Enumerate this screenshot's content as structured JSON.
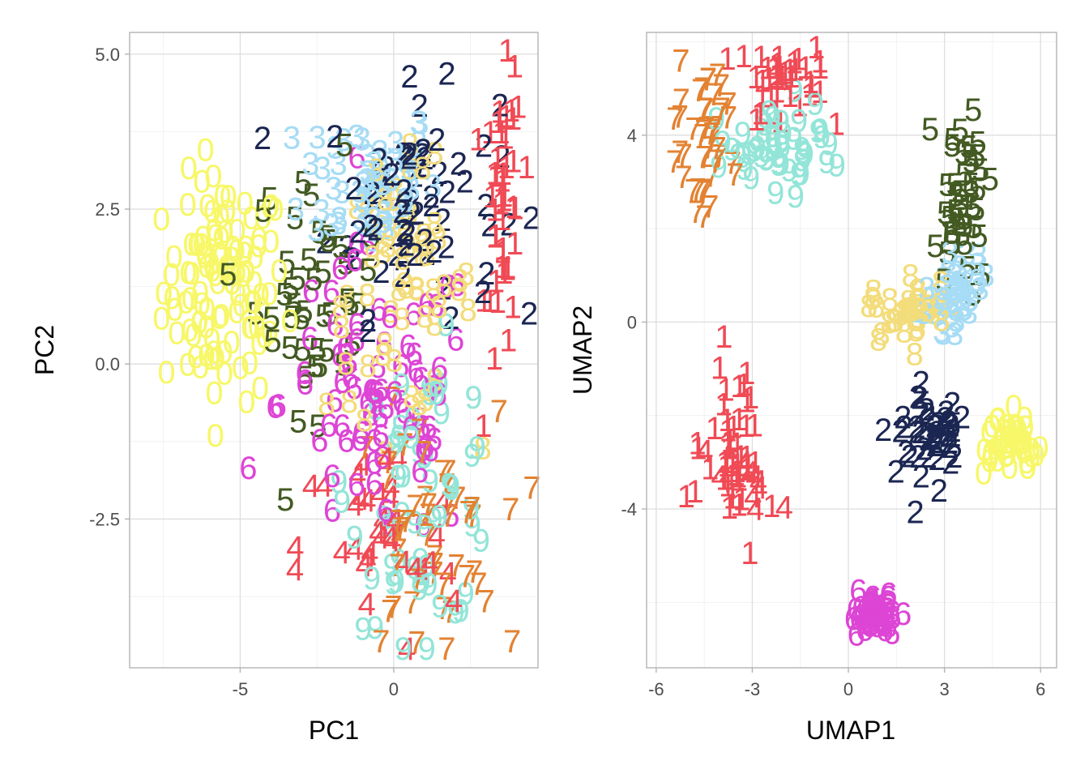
{
  "colors": {
    "0": "#f7f769",
    "1": "#f04a55",
    "2": "#1b2652",
    "3": "#a6dcf5",
    "4": "#f04a55",
    "5": "#435a22",
    "6": "#dd45d5",
    "7": "#e38232",
    "8": "#f3dc7a",
    "9": "#93e5d8"
  },
  "chart_data": [
    {
      "type": "scatter",
      "xlabel": "PC1",
      "ylabel": "PC2",
      "xlim": [
        -8.6,
        4.7
      ],
      "ylim": [
        -4.9,
        5.35
      ],
      "xticks": [
        -5,
        0
      ],
      "xtick_labels": [
        "-5",
        "0"
      ],
      "yticks": [
        5.0,
        2.5,
        0.0,
        -2.5
      ],
      "ytick_labels": [
        "5.0",
        "2.5",
        "0.0",
        "-2.5"
      ],
      "grid": true,
      "legend": "none",
      "clusters": [
        {
          "label": "0",
          "cx": -5.5,
          "cy": 1.2,
          "sx": 1.0,
          "sy": 0.9,
          "n": 110
        },
        {
          "label": "3",
          "cx": -0.8,
          "cy": 3.0,
          "sx": 1.1,
          "sy": 0.6,
          "n": 60
        },
        {
          "label": "2",
          "cx": 0.6,
          "cy": 2.6,
          "sx": 1.4,
          "sy": 0.9,
          "n": 70
        },
        {
          "label": "5",
          "cx": -2.5,
          "cy": 1.2,
          "sx": 1.0,
          "sy": 1.0,
          "n": 45
        },
        {
          "label": "8",
          "cx": 0.2,
          "cy": 1.2,
          "sx": 1.2,
          "sy": 1.0,
          "n": 60
        },
        {
          "label": "6",
          "cx": -0.5,
          "cy": -0.6,
          "sx": 1.6,
          "sy": 1.2,
          "n": 80
        },
        {
          "label": "1",
          "cx": 3.6,
          "cy": 2.3,
          "sx": 0.3,
          "sy": 1.3,
          "n": 45
        },
        {
          "label": "9",
          "cx": 1.0,
          "cy": -2.0,
          "sx": 1.2,
          "sy": 1.1,
          "n": 60
        },
        {
          "label": "7",
          "cx": 1.0,
          "cy": -2.8,
          "sx": 1.2,
          "sy": 1.0,
          "n": 50
        },
        {
          "label": "4",
          "cx": -0.5,
          "cy": -3.0,
          "sx": 1.3,
          "sy": 0.9,
          "n": 35
        }
      ]
    },
    {
      "type": "scatter",
      "xlabel": "UMAP1",
      "ylabel": "UMAP2",
      "xlim": [
        -6.3,
        6.5
      ],
      "ylim": [
        -7.4,
        6.2
      ],
      "xticks": [
        -6,
        -3,
        0,
        3,
        6
      ],
      "xtick_labels": [
        "-6",
        "-3",
        "0",
        "3",
        "6"
      ],
      "yticks": [
        4,
        0,
        -4
      ],
      "ytick_labels": [
        "4",
        "0",
        "-4"
      ],
      "grid": true,
      "legend": "none",
      "clusters": [
        {
          "label": "7",
          "cx": -4.5,
          "cy": 3.8,
          "sx": 0.5,
          "sy": 0.8,
          "n": 45
        },
        {
          "label": "1",
          "cx": -2.0,
          "cy": 5.1,
          "sx": 0.8,
          "sy": 0.4,
          "n": 40
        },
        {
          "label": "9",
          "cx": -2.5,
          "cy": 3.8,
          "sx": 1.0,
          "sy": 0.5,
          "n": 50
        },
        {
          "label": "5",
          "cx": 3.6,
          "cy": 2.6,
          "sx": 0.4,
          "sy": 0.9,
          "n": 45
        },
        {
          "label": "8",
          "cx": 1.9,
          "cy": 0.2,
          "sx": 0.6,
          "sy": 0.3,
          "n": 40
        },
        {
          "label": "3",
          "cx": 3.4,
          "cy": 0.6,
          "sx": 0.4,
          "sy": 0.5,
          "n": 45
        },
        {
          "label": "2",
          "cx": 2.5,
          "cy": -2.2,
          "sx": 0.5,
          "sy": 0.5,
          "n": 50
        },
        {
          "label": "0",
          "cx": 5.1,
          "cy": -2.6,
          "sx": 0.4,
          "sy": 0.3,
          "n": 45
        },
        {
          "label": "1",
          "cx": -3.6,
          "cy": -2.8,
          "sx": 0.5,
          "sy": 0.9,
          "n": 45
        },
        {
          "label": "6",
          "cx": 0.8,
          "cy": -6.3,
          "sx": 0.4,
          "sy": 0.2,
          "n": 50
        },
        {
          "label": "4",
          "cx": -3.3,
          "cy": -3.3,
          "sx": 0.5,
          "sy": 0.6,
          "n": 12
        }
      ]
    }
  ]
}
